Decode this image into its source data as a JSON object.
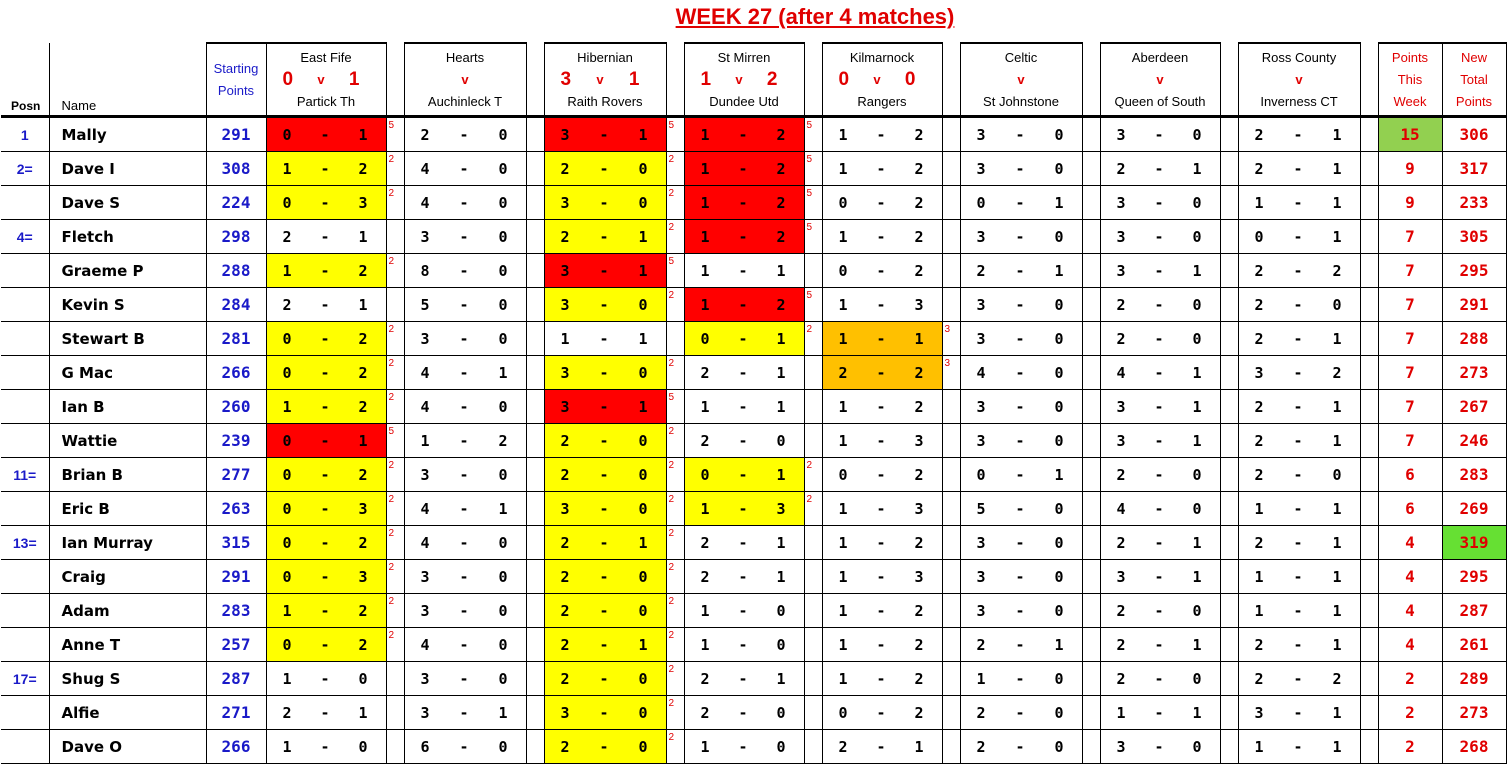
{
  "title": "WEEK 27 (after 4 matches)",
  "colors": {
    "points_5": "#ff0000",
    "points_3": "#ffc000",
    "points_2": "#ffff00",
    "top_week": "#92d050",
    "top_total": "#66e033"
  },
  "headers": {
    "posn": "Posn",
    "name": "Name",
    "starting_1": "Starting",
    "starting_2": "Points",
    "week_1": "Points",
    "week_2": "This",
    "week_3": "Week",
    "total_1": "New",
    "total_2": "Total",
    "total_3": "Points",
    "vs": "v"
  },
  "matches": [
    {
      "home": "East Fife",
      "away": "Partick Th",
      "home_score": "0",
      "away_score": "1",
      "has_points": true
    },
    {
      "home": "Hearts",
      "away": "Auchinleck T",
      "home_score": "",
      "away_score": "",
      "has_points": false
    },
    {
      "home": "Hibernian",
      "away": "Raith Rovers",
      "home_score": "3",
      "away_score": "1",
      "has_points": true
    },
    {
      "home": "St Mirren",
      "away": "Dundee Utd",
      "home_score": "1",
      "away_score": "2",
      "has_points": true
    },
    {
      "home": "Kilmarnock",
      "away": "Rangers",
      "home_score": "0",
      "away_score": "0",
      "has_points": true
    },
    {
      "home": "Celtic",
      "away": "St Johnstone",
      "home_score": "",
      "away_score": "",
      "has_points": false
    },
    {
      "home": "Aberdeen",
      "away": "Queen of South",
      "home_score": "",
      "away_score": "",
      "has_points": false
    },
    {
      "home": "Ross County",
      "away": "Inverness CT",
      "home_score": "",
      "away_score": "",
      "has_points": false
    }
  ],
  "rows": [
    {
      "posn": "1",
      "name": "Mally",
      "start": "291",
      "preds": [
        [
          "0",
          "1",
          "5"
        ],
        [
          "2",
          "0",
          ""
        ],
        [
          "3",
          "1",
          "5"
        ],
        [
          "1",
          "2",
          "5"
        ],
        [
          "1",
          "2",
          ""
        ],
        [
          "3",
          "0",
          ""
        ],
        [
          "3",
          "0",
          ""
        ],
        [
          "2",
          "1",
          ""
        ]
      ],
      "week": "15",
      "total": "306",
      "week_highlight": true
    },
    {
      "posn": "2=",
      "name": "Dave I",
      "start": "308",
      "preds": [
        [
          "1",
          "2",
          "2"
        ],
        [
          "4",
          "0",
          ""
        ],
        [
          "2",
          "0",
          "2"
        ],
        [
          "1",
          "2",
          "5"
        ],
        [
          "1",
          "2",
          ""
        ],
        [
          "3",
          "0",
          ""
        ],
        [
          "2",
          "1",
          ""
        ],
        [
          "2",
          "1",
          ""
        ]
      ],
      "week": "9",
      "total": "317"
    },
    {
      "posn": "",
      "name": "Dave S",
      "start": "224",
      "preds": [
        [
          "0",
          "3",
          "2"
        ],
        [
          "4",
          "0",
          ""
        ],
        [
          "3",
          "0",
          "2"
        ],
        [
          "1",
          "2",
          "5"
        ],
        [
          "0",
          "2",
          ""
        ],
        [
          "0",
          "1",
          ""
        ],
        [
          "3",
          "0",
          ""
        ],
        [
          "1",
          "1",
          ""
        ]
      ],
      "week": "9",
      "total": "233"
    },
    {
      "posn": "4=",
      "name": "Fletch",
      "start": "298",
      "preds": [
        [
          "2",
          "1",
          ""
        ],
        [
          "3",
          "0",
          ""
        ],
        [
          "2",
          "1",
          "2"
        ],
        [
          "1",
          "2",
          "5"
        ],
        [
          "1",
          "2",
          ""
        ],
        [
          "3",
          "0",
          ""
        ],
        [
          "3",
          "0",
          ""
        ],
        [
          "0",
          "1",
          ""
        ]
      ],
      "week": "7",
      "total": "305"
    },
    {
      "posn": "",
      "name": "Graeme P",
      "start": "288",
      "preds": [
        [
          "1",
          "2",
          "2"
        ],
        [
          "8",
          "0",
          ""
        ],
        [
          "3",
          "1",
          "5"
        ],
        [
          "1",
          "1",
          ""
        ],
        [
          "0",
          "2",
          ""
        ],
        [
          "2",
          "1",
          ""
        ],
        [
          "3",
          "1",
          ""
        ],
        [
          "2",
          "2",
          ""
        ]
      ],
      "week": "7",
      "total": "295"
    },
    {
      "posn": "",
      "name": "Kevin S",
      "start": "284",
      "preds": [
        [
          "2",
          "1",
          ""
        ],
        [
          "5",
          "0",
          ""
        ],
        [
          "3",
          "0",
          "2"
        ],
        [
          "1",
          "2",
          "5"
        ],
        [
          "1",
          "3",
          ""
        ],
        [
          "3",
          "0",
          ""
        ],
        [
          "2",
          "0",
          ""
        ],
        [
          "2",
          "0",
          ""
        ]
      ],
      "week": "7",
      "total": "291"
    },
    {
      "posn": "",
      "name": "Stewart B",
      "start": "281",
      "preds": [
        [
          "0",
          "2",
          "2"
        ],
        [
          "3",
          "0",
          ""
        ],
        [
          "1",
          "1",
          ""
        ],
        [
          "0",
          "1",
          "2"
        ],
        [
          "1",
          "1",
          "3"
        ],
        [
          "3",
          "0",
          ""
        ],
        [
          "2",
          "0",
          ""
        ],
        [
          "2",
          "1",
          ""
        ]
      ],
      "week": "7",
      "total": "288"
    },
    {
      "posn": "",
      "name": "G Mac",
      "start": "266",
      "preds": [
        [
          "0",
          "2",
          "2"
        ],
        [
          "4",
          "1",
          ""
        ],
        [
          "3",
          "0",
          "2"
        ],
        [
          "2",
          "1",
          ""
        ],
        [
          "2",
          "2",
          "3"
        ],
        [
          "4",
          "0",
          ""
        ],
        [
          "4",
          "1",
          ""
        ],
        [
          "3",
          "2",
          ""
        ]
      ],
      "week": "7",
      "total": "273"
    },
    {
      "posn": "",
      "name": "Ian B",
      "start": "260",
      "preds": [
        [
          "1",
          "2",
          "2"
        ],
        [
          "4",
          "0",
          ""
        ],
        [
          "3",
          "1",
          "5"
        ],
        [
          "1",
          "1",
          ""
        ],
        [
          "1",
          "2",
          ""
        ],
        [
          "3",
          "0",
          ""
        ],
        [
          "3",
          "1",
          ""
        ],
        [
          "2",
          "1",
          ""
        ]
      ],
      "week": "7",
      "total": "267"
    },
    {
      "posn": "",
      "name": "Wattie",
      "start": "239",
      "preds": [
        [
          "0",
          "1",
          "5"
        ],
        [
          "1",
          "2",
          ""
        ],
        [
          "2",
          "0",
          "2"
        ],
        [
          "2",
          "0",
          ""
        ],
        [
          "1",
          "3",
          ""
        ],
        [
          "3",
          "0",
          ""
        ],
        [
          "3",
          "1",
          ""
        ],
        [
          "2",
          "1",
          ""
        ]
      ],
      "week": "7",
      "total": "246"
    },
    {
      "posn": "11=",
      "name": "Brian B",
      "start": "277",
      "preds": [
        [
          "0",
          "2",
          "2"
        ],
        [
          "3",
          "0",
          ""
        ],
        [
          "2",
          "0",
          "2"
        ],
        [
          "0",
          "1",
          "2"
        ],
        [
          "0",
          "2",
          ""
        ],
        [
          "0",
          "1",
          ""
        ],
        [
          "2",
          "0",
          ""
        ],
        [
          "2",
          "0",
          ""
        ]
      ],
      "week": "6",
      "total": "283"
    },
    {
      "posn": "",
      "name": "Eric B",
      "start": "263",
      "preds": [
        [
          "0",
          "3",
          "2"
        ],
        [
          "4",
          "1",
          ""
        ],
        [
          "3",
          "0",
          "2"
        ],
        [
          "1",
          "3",
          "2"
        ],
        [
          "1",
          "3",
          ""
        ],
        [
          "5",
          "0",
          ""
        ],
        [
          "4",
          "0",
          ""
        ],
        [
          "1",
          "1",
          ""
        ]
      ],
      "week": "6",
      "total": "269"
    },
    {
      "posn": "13=",
      "name": "Ian Murray",
      "start": "315",
      "preds": [
        [
          "0",
          "2",
          "2"
        ],
        [
          "4",
          "0",
          ""
        ],
        [
          "2",
          "1",
          "2"
        ],
        [
          "2",
          "1",
          ""
        ],
        [
          "1",
          "2",
          ""
        ],
        [
          "3",
          "0",
          ""
        ],
        [
          "2",
          "1",
          ""
        ],
        [
          "2",
          "1",
          ""
        ]
      ],
      "week": "4",
      "total": "319",
      "total_highlight": true
    },
    {
      "posn": "",
      "name": "Craig",
      "start": "291",
      "preds": [
        [
          "0",
          "3",
          "2"
        ],
        [
          "3",
          "0",
          ""
        ],
        [
          "2",
          "0",
          "2"
        ],
        [
          "2",
          "1",
          ""
        ],
        [
          "1",
          "3",
          ""
        ],
        [
          "3",
          "0",
          ""
        ],
        [
          "3",
          "1",
          ""
        ],
        [
          "1",
          "1",
          ""
        ]
      ],
      "week": "4",
      "total": "295"
    },
    {
      "posn": "",
      "name": "Adam",
      "start": "283",
      "preds": [
        [
          "1",
          "2",
          "2"
        ],
        [
          "3",
          "0",
          ""
        ],
        [
          "2",
          "0",
          "2"
        ],
        [
          "1",
          "0",
          ""
        ],
        [
          "1",
          "2",
          ""
        ],
        [
          "3",
          "0",
          ""
        ],
        [
          "2",
          "0",
          ""
        ],
        [
          "1",
          "1",
          ""
        ]
      ],
      "week": "4",
      "total": "287"
    },
    {
      "posn": "",
      "name": "Anne T",
      "start": "257",
      "preds": [
        [
          "0",
          "2",
          "2"
        ],
        [
          "4",
          "0",
          ""
        ],
        [
          "2",
          "1",
          "2"
        ],
        [
          "1",
          "0",
          ""
        ],
        [
          "1",
          "2",
          ""
        ],
        [
          "2",
          "1",
          ""
        ],
        [
          "2",
          "1",
          ""
        ],
        [
          "2",
          "1",
          ""
        ]
      ],
      "week": "4",
      "total": "261"
    },
    {
      "posn": "17=",
      "name": "Shug S",
      "start": "287",
      "preds": [
        [
          "1",
          "0",
          ""
        ],
        [
          "3",
          "0",
          ""
        ],
        [
          "2",
          "0",
          "2"
        ],
        [
          "2",
          "1",
          ""
        ],
        [
          "1",
          "2",
          ""
        ],
        [
          "1",
          "0",
          ""
        ],
        [
          "2",
          "0",
          ""
        ],
        [
          "2",
          "2",
          ""
        ]
      ],
      "week": "2",
      "total": "289"
    },
    {
      "posn": "",
      "name": "Alfie",
      "start": "271",
      "preds": [
        [
          "2",
          "1",
          ""
        ],
        [
          "3",
          "1",
          ""
        ],
        [
          "3",
          "0",
          "2"
        ],
        [
          "2",
          "0",
          ""
        ],
        [
          "0",
          "2",
          ""
        ],
        [
          "2",
          "0",
          ""
        ],
        [
          "1",
          "1",
          ""
        ],
        [
          "3",
          "1",
          ""
        ]
      ],
      "week": "2",
      "total": "273"
    },
    {
      "posn": "",
      "name": "Dave O",
      "start": "266",
      "preds": [
        [
          "1",
          "0",
          ""
        ],
        [
          "6",
          "0",
          ""
        ],
        [
          "2",
          "0",
          "2"
        ],
        [
          "1",
          "0",
          ""
        ],
        [
          "2",
          "1",
          ""
        ],
        [
          "2",
          "0",
          ""
        ],
        [
          "3",
          "0",
          ""
        ],
        [
          "1",
          "1",
          ""
        ]
      ],
      "week": "2",
      "total": "268"
    }
  ]
}
